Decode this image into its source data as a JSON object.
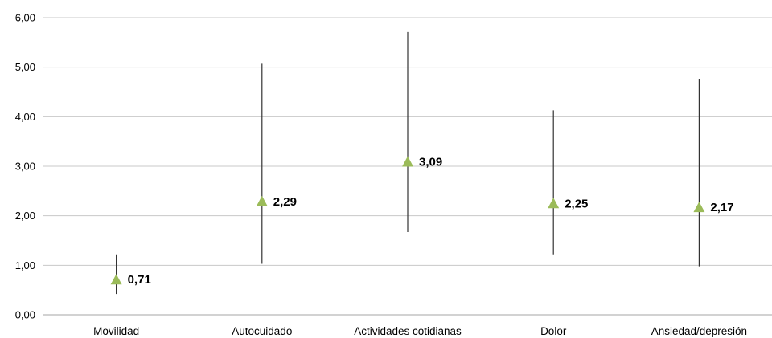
{
  "chart_data": {
    "type": "scatter",
    "title": "",
    "xlabel": "",
    "ylabel": "",
    "ylim": [
      0,
      6
    ],
    "y_ticks": [
      "0,00",
      "1,00",
      "2,00",
      "3,00",
      "4,00",
      "5,00",
      "6,00"
    ],
    "categories": [
      "Movilidad",
      "Autocuidado",
      "Actividades cotidianas",
      "Dolor",
      "Ansiedad/depresión"
    ],
    "values": [
      0.71,
      2.29,
      3.09,
      2.25,
      2.17
    ],
    "value_labels": [
      "0,71",
      "2,29",
      "3,09",
      "2,25",
      "2,17"
    ],
    "error_low": [
      0.42,
      1.03,
      1.67,
      1.22,
      0.98
    ],
    "error_high": [
      1.22,
      5.07,
      5.71,
      4.13,
      4.76
    ],
    "grid": true,
    "legend": "none",
    "marker": "triangle",
    "colors": {
      "marker": "#9BBB59",
      "error_bar": "#333333",
      "grid": "#c8c8c8",
      "axis": "#a6a6a6"
    }
  }
}
